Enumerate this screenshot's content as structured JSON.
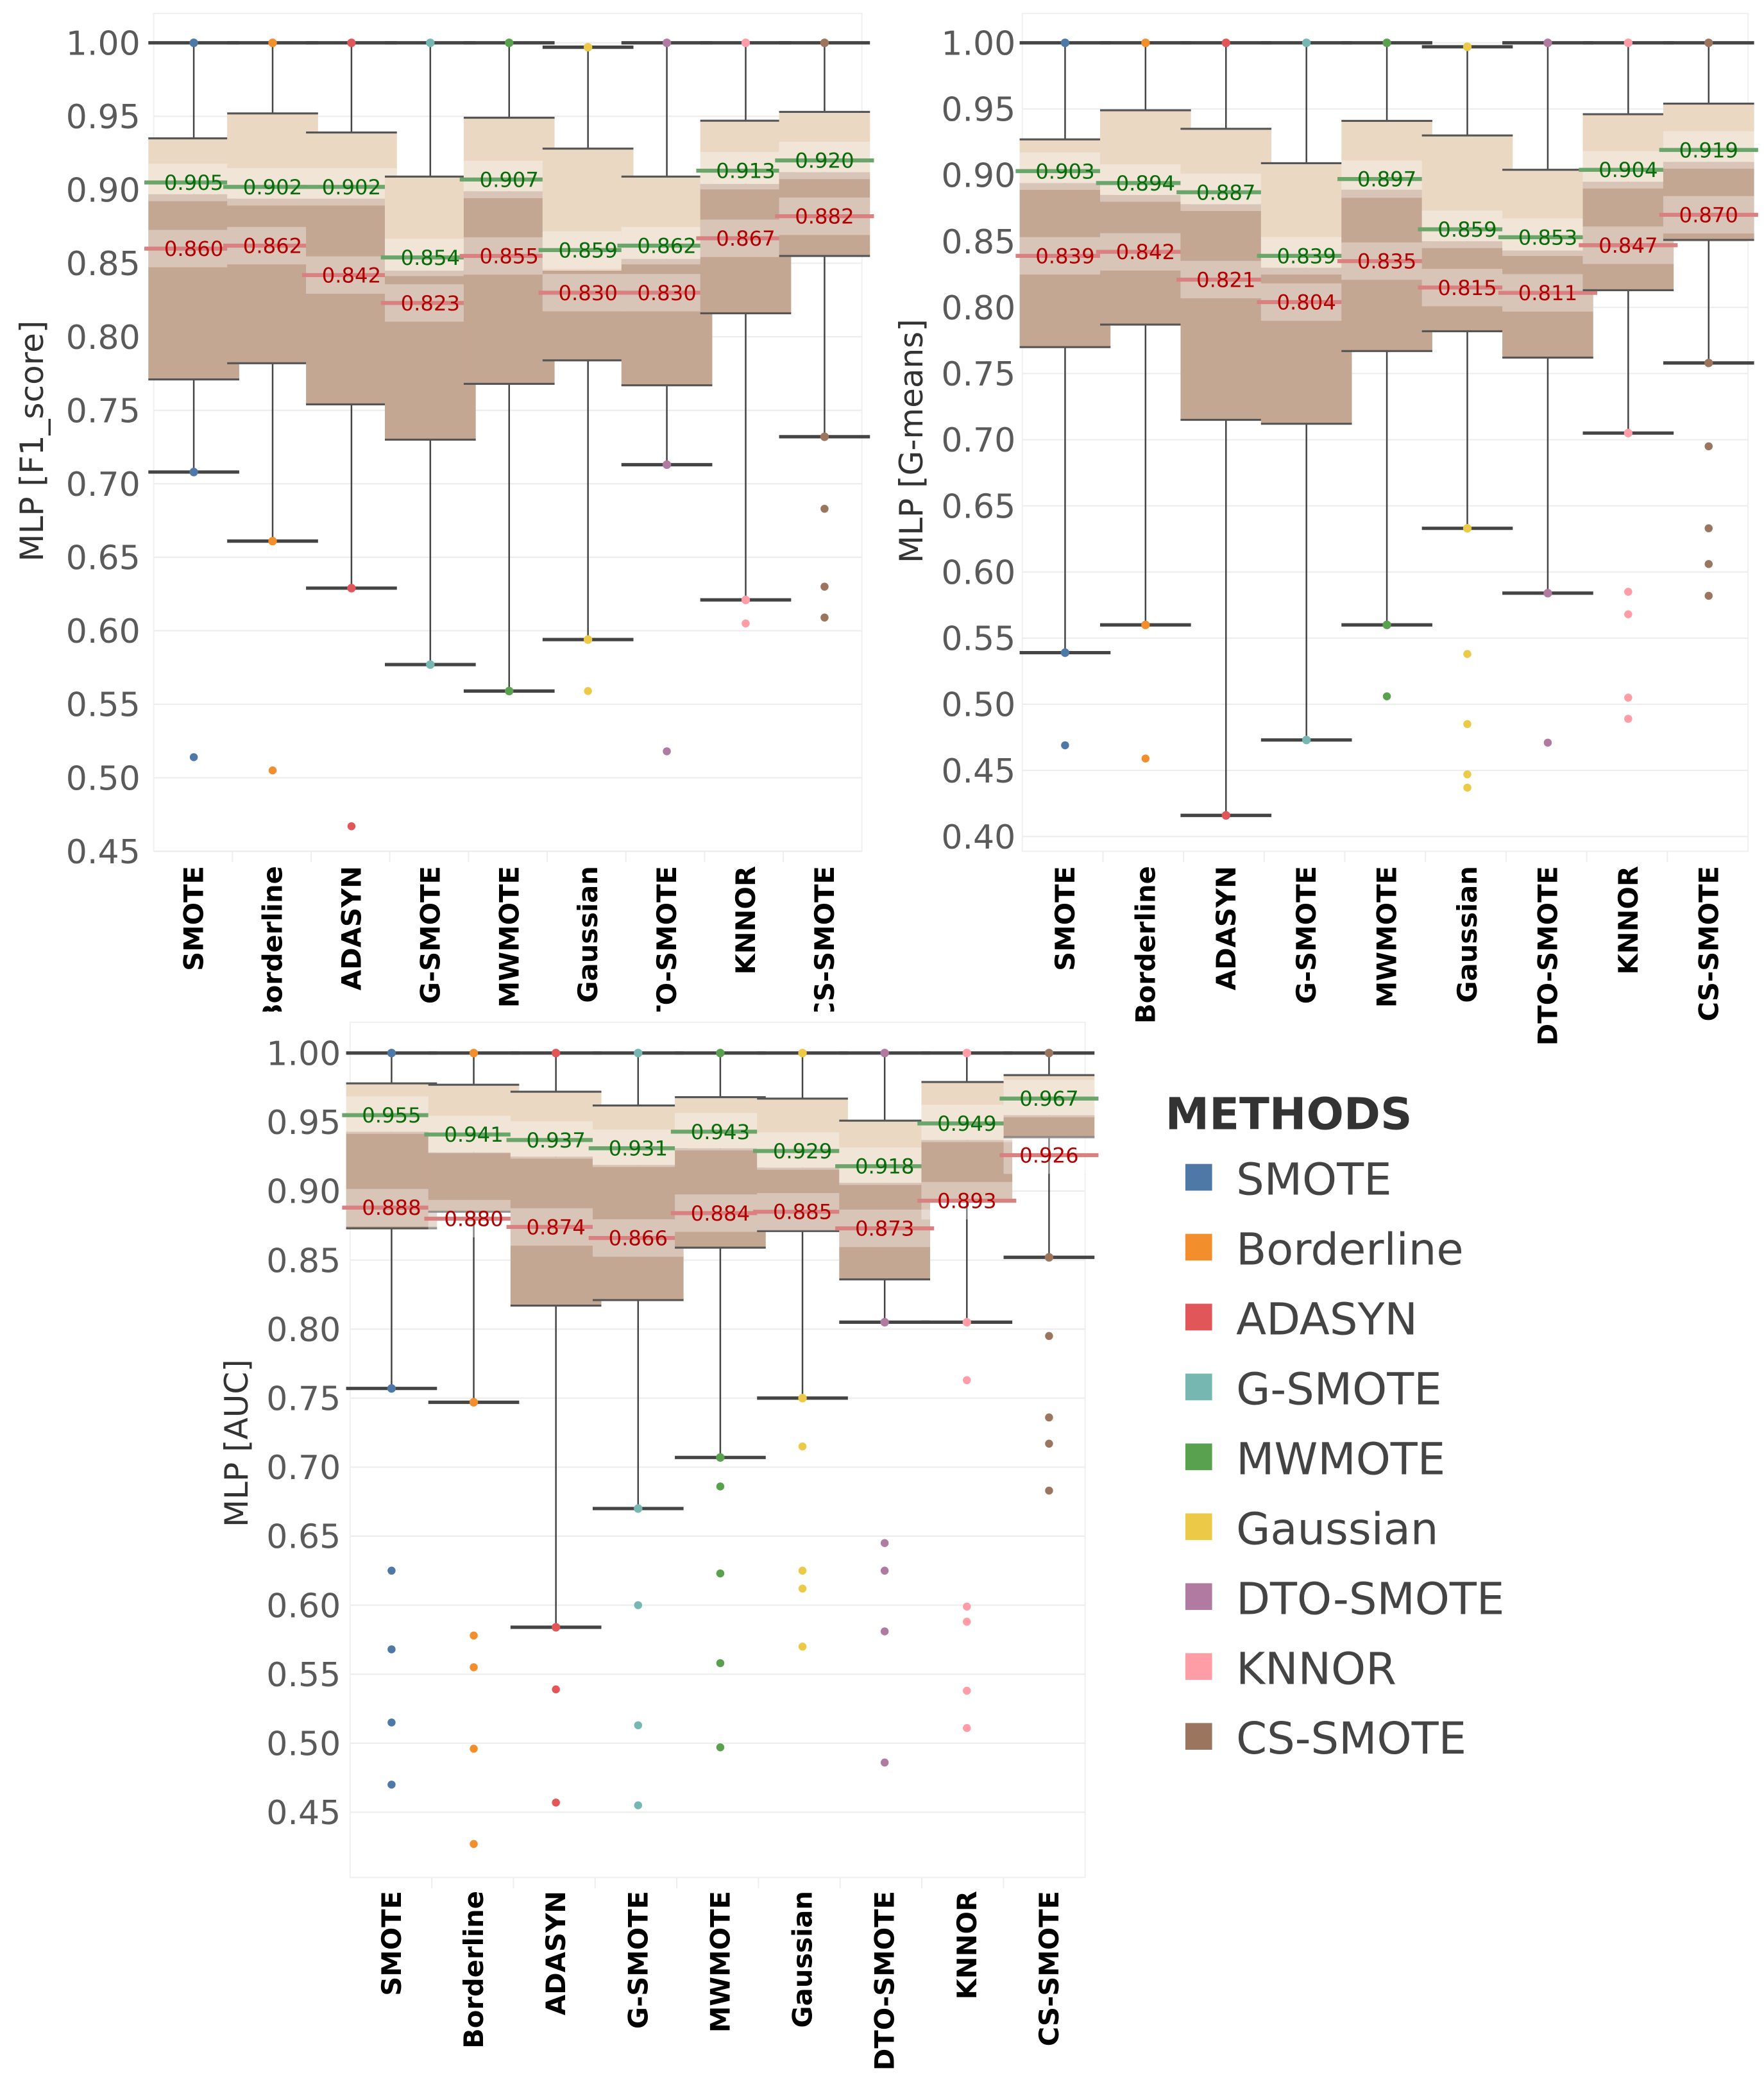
{
  "legend": {
    "title": "METHODS",
    "items": [
      {
        "label": "SMOTE",
        "color": "#4e79a7"
      },
      {
        "label": "Borderline",
        "color": "#f28e2b"
      },
      {
        "label": "ADASYN",
        "color": "#e15759"
      },
      {
        "label": "G-SMOTE",
        "color": "#76b7b2"
      },
      {
        "label": "MWMOTE",
        "color": "#59a14f"
      },
      {
        "label": "Gaussian",
        "color": "#edc948"
      },
      {
        "label": "DTO-SMOTE",
        "color": "#b07aa1"
      },
      {
        "label": "KNNOR",
        "color": "#ff9da7"
      },
      {
        "label": "CS-SMOTE",
        "color": "#9c755f"
      }
    ]
  },
  "colors": {
    "green_label": "#0a6b0a",
    "red_label": "#b00000",
    "box_upper": "#ead8c3",
    "box_lower": "#c4a793"
  },
  "chart_data": [
    {
      "type": "box",
      "ylabel": "MLP [F1_score]",
      "ylim": [
        0.45,
        1.0
      ],
      "yticks": [
        "1.00",
        "0.95",
        "0.90",
        "0.85",
        "0.80",
        "0.75",
        "0.70",
        "0.65",
        "0.60",
        "0.55",
        "0.50",
        "0.45"
      ],
      "grid": true,
      "categories": [
        "SMOTE",
        "Borderline",
        "ADASYN",
        "G-SMOTE",
        "MWMOTE",
        "Gaussian",
        "DTO-SMOTE",
        "KNNOR",
        "CS-SMOTE"
      ],
      "boxes": [
        {
          "whisker_low": 0.708,
          "q1": 0.771,
          "median": 0.897,
          "q3": 0.935,
          "whisker_high": 1.0,
          "green": "0.905",
          "red": "0.860",
          "outliers": [
            0.514
          ]
        },
        {
          "whisker_low": 0.661,
          "q1": 0.782,
          "median": 0.894,
          "q3": 0.952,
          "whisker_high": 1.0,
          "green": "0.902",
          "red": "0.862",
          "outliers": [
            0.505
          ]
        },
        {
          "whisker_low": 0.629,
          "q1": 0.754,
          "median": 0.894,
          "q3": 0.939,
          "whisker_high": 1.0,
          "green": "0.902",
          "red": "0.842",
          "outliers": [
            0.467
          ]
        },
        {
          "whisker_low": 0.577,
          "q1": 0.73,
          "median": 0.845,
          "q3": 0.909,
          "whisker_high": 1.0,
          "green": "0.854",
          "red": "0.823",
          "outliers": []
        },
        {
          "whisker_low": 0.559,
          "q1": 0.768,
          "median": 0.899,
          "q3": 0.949,
          "whisker_high": 1.0,
          "green": "0.907",
          "red": "0.855",
          "outliers": []
        },
        {
          "whisker_low": 0.594,
          "q1": 0.784,
          "median": 0.845,
          "q3": 0.928,
          "whisker_high": 0.997,
          "green": "0.859",
          "red": "0.830",
          "outliers": [
            0.559
          ]
        },
        {
          "whisker_low": 0.713,
          "q1": 0.767,
          "median": 0.853,
          "q3": 0.909,
          "whisker_high": 1.0,
          "green": "0.862",
          "red": "0.830",
          "outliers": [
            0.518
          ]
        },
        {
          "whisker_low": 0.621,
          "q1": 0.816,
          "median": 0.904,
          "q3": 0.947,
          "whisker_high": 1.0,
          "green": "0.913",
          "red": "0.867",
          "outliers": [
            0.605
          ]
        },
        {
          "whisker_low": 0.732,
          "q1": 0.855,
          "median": 0.912,
          "q3": 0.953,
          "whisker_high": 1.0,
          "green": "0.920",
          "red": "0.882",
          "outliers": [
            0.683,
            0.63,
            0.609
          ]
        }
      ]
    },
    {
      "type": "box",
      "ylabel": "MLP [G-means]",
      "ylim": [
        0.4,
        1.0
      ],
      "yticks": [
        "1.00",
        "0.95",
        "0.90",
        "0.85",
        "0.80",
        "0.75",
        "0.70",
        "0.65",
        "0.60",
        "0.55",
        "0.50",
        "0.45",
        "0.40"
      ],
      "grid": true,
      "categories": [
        "SMOTE",
        "Borderline",
        "ADASYN",
        "G-SMOTE",
        "MWMOTE",
        "Gaussian",
        "DTO-SMOTE",
        "KNNOR",
        "CS-SMOTE"
      ],
      "boxes": [
        {
          "whisker_low": 0.539,
          "q1": 0.77,
          "median": 0.894,
          "q3": 0.927,
          "whisker_high": 1.0,
          "green": "0.903",
          "red": "0.839",
          "outliers": [
            0.469
          ]
        },
        {
          "whisker_low": 0.56,
          "q1": 0.787,
          "median": 0.885,
          "q3": 0.949,
          "whisker_high": 1.0,
          "green": "0.894",
          "red": "0.842",
          "outliers": [
            0.459
          ]
        },
        {
          "whisker_low": 0.416,
          "q1": 0.715,
          "median": 0.878,
          "q3": 0.935,
          "whisker_high": 1.0,
          "green": "0.887",
          "red": "0.821",
          "outliers": []
        },
        {
          "whisker_low": 0.473,
          "q1": 0.712,
          "median": 0.83,
          "q3": 0.909,
          "whisker_high": 1.0,
          "green": "0.839",
          "red": "0.804",
          "outliers": []
        },
        {
          "whisker_low": 0.56,
          "q1": 0.767,
          "median": 0.889,
          "q3": 0.941,
          "whisker_high": 1.0,
          "green": "0.897",
          "red": "0.835",
          "outliers": [
            0.506
          ]
        },
        {
          "whisker_low": 0.633,
          "q1": 0.782,
          "median": 0.85,
          "q3": 0.93,
          "whisker_high": 0.997,
          "green": "0.859",
          "red": "0.815",
          "outliers": [
            0.538,
            0.485,
            0.447,
            0.437
          ]
        },
        {
          "whisker_low": 0.584,
          "q1": 0.762,
          "median": 0.843,
          "q3": 0.904,
          "whisker_high": 1.0,
          "green": "0.853",
          "red": "0.811",
          "outliers": [
            0.471
          ]
        },
        {
          "whisker_low": 0.705,
          "q1": 0.813,
          "median": 0.895,
          "q3": 0.946,
          "whisker_high": 1.0,
          "green": "0.904",
          "red": "0.847",
          "outliers": [
            0.585,
            0.568,
            0.505,
            0.489
          ]
        },
        {
          "whisker_low": 0.758,
          "q1": 0.851,
          "median": 0.91,
          "q3": 0.954,
          "whisker_high": 1.0,
          "green": "0.919",
          "red": "0.870",
          "outliers": [
            0.695,
            0.633,
            0.606,
            0.582
          ]
        }
      ]
    },
    {
      "type": "box",
      "ylabel": "MLP [AUC]",
      "ylim": [
        0.4,
        1.0
      ],
      "yticks": [
        "1.00",
        "0.95",
        "0.90",
        "0.85",
        "0.80",
        "0.75",
        "0.70",
        "0.65",
        "0.60",
        "0.55",
        "0.50",
        "0.45"
      ],
      "grid": true,
      "categories": [
        "SMOTE",
        "Borderline",
        "ADASYN",
        "G-SMOTE",
        "MWMOTE",
        "Gaussian",
        "DTO-SMOTE",
        "KNNOR",
        "CS-SMOTE"
      ],
      "boxes": [
        {
          "whisker_low": 0.757,
          "q1": 0.873,
          "median": 0.943,
          "q3": 0.978,
          "whisker_high": 1.0,
          "green": "0.955",
          "red": "0.888",
          "outliers": [
            0.625,
            0.568,
            0.515,
            0.47
          ]
        },
        {
          "whisker_low": 0.747,
          "q1": 0.885,
          "median": 0.928,
          "q3": 0.977,
          "whisker_high": 1.0,
          "green": "0.941",
          "red": "0.880",
          "outliers": [
            0.578,
            0.555,
            0.496,
            0.427
          ]
        },
        {
          "whisker_low": 0.584,
          "q1": 0.817,
          "median": 0.925,
          "q3": 0.972,
          "whisker_high": 1.0,
          "green": "0.937",
          "red": "0.874",
          "outliers": [
            0.539,
            0.457
          ]
        },
        {
          "whisker_low": 0.67,
          "q1": 0.821,
          "median": 0.919,
          "q3": 0.962,
          "whisker_high": 1.0,
          "green": "0.931",
          "red": "0.866",
          "outliers": [
            0.6,
            0.513,
            0.455
          ]
        },
        {
          "whisker_low": 0.707,
          "q1": 0.859,
          "median": 0.931,
          "q3": 0.968,
          "whisker_high": 1.0,
          "green": "0.943",
          "red": "0.884",
          "outliers": [
            0.686,
            0.623,
            0.558,
            0.497
          ]
        },
        {
          "whisker_low": 0.75,
          "q1": 0.871,
          "median": 0.917,
          "q3": 0.967,
          "whisker_high": 1.0,
          "green": "0.929",
          "red": "0.885",
          "outliers": [
            0.715,
            0.625,
            0.612,
            0.57
          ]
        },
        {
          "whisker_low": 0.805,
          "q1": 0.836,
          "median": 0.906,
          "q3": 0.951,
          "whisker_high": 1.0,
          "green": "0.918",
          "red": "0.873",
          "outliers": [
            0.645,
            0.625,
            0.581,
            0.486
          ]
        },
        {
          "whisker_low": 0.805,
          "q1": 0.893,
          "median": 0.937,
          "q3": 0.979,
          "whisker_high": 1.0,
          "green": "0.949",
          "red": "0.893",
          "outliers": [
            0.763,
            0.599,
            0.588,
            0.538,
            0.511
          ]
        },
        {
          "whisker_low": 0.852,
          "q1": 0.939,
          "median": 0.955,
          "q3": 0.984,
          "whisker_high": 1.0,
          "green": "0.967",
          "red": "0.926",
          "outliers": [
            0.795,
            0.736,
            0.717,
            0.683
          ]
        }
      ]
    }
  ]
}
